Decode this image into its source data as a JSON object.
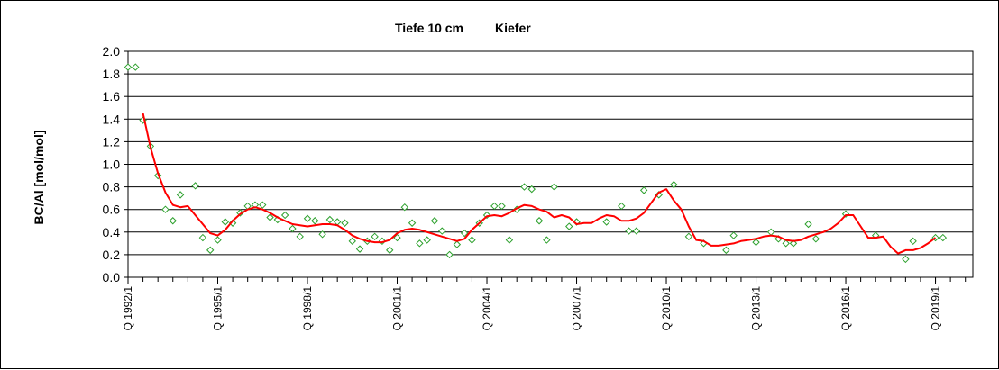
{
  "chart_data": {
    "type": "line",
    "title_left": "Tiefe  10 cm",
    "title_right": "Kiefer",
    "ylabel": "BC/Al [mol/mol]",
    "xlabel": "",
    "ylim": [
      0,
      2.0
    ],
    "yticks": [
      "0.0",
      "0.2",
      "0.4",
      "0.6",
      "0.8",
      "1.0",
      "1.2",
      "1.4",
      "1.6",
      "1.8",
      "2.0"
    ],
    "xlim": [
      1992.0,
      2020.25
    ],
    "xticks": [
      {
        "year": 1992,
        "label": "Q 1992/1"
      },
      {
        "year": 1995,
        "label": "Q 1995/1"
      },
      {
        "year": 1998,
        "label": "Q 1998/1"
      },
      {
        "year": 2001,
        "label": "Q 2001/1"
      },
      {
        "year": 2004,
        "label": "Q 2004/1"
      },
      {
        "year": 2007,
        "label": "Q 2007/1"
      },
      {
        "year": 2010,
        "label": "Q 2010/1"
      },
      {
        "year": 2013,
        "label": "Q 2013/1"
      },
      {
        "year": 2016,
        "label": "Q 2016/1"
      },
      {
        "year": 2019,
        "label": "Q 2019/1"
      }
    ],
    "grid": true,
    "legend": "none",
    "series": [
      {
        "kind": "scatter",
        "color": "#2ca02c",
        "points": [
          [
            1992.0,
            1.86
          ],
          [
            1992.25,
            1.86
          ],
          [
            1992.5,
            1.39
          ],
          [
            1992.75,
            1.16
          ],
          [
            1993.0,
            0.9
          ],
          [
            1993.25,
            0.6
          ],
          [
            1993.5,
            0.5
          ],
          [
            1993.75,
            0.73
          ],
          [
            1994.25,
            0.81
          ],
          [
            1994.5,
            0.35
          ],
          [
            1994.75,
            0.24
          ],
          [
            1995.0,
            0.33
          ],
          [
            1995.25,
            0.49
          ],
          [
            1995.5,
            0.48
          ],
          [
            1995.75,
            0.57
          ],
          [
            1996.0,
            0.63
          ],
          [
            1996.25,
            0.64
          ],
          [
            1996.5,
            0.64
          ],
          [
            1996.75,
            0.53
          ],
          [
            1997.0,
            0.51
          ],
          [
            1997.25,
            0.55
          ],
          [
            1997.5,
            0.43
          ],
          [
            1997.75,
            0.36
          ],
          [
            1998.0,
            0.52
          ],
          [
            1998.25,
            0.5
          ],
          [
            1998.5,
            0.38
          ],
          [
            1998.75,
            0.51
          ],
          [
            1999.0,
            0.49
          ],
          [
            1999.25,
            0.48
          ],
          [
            1999.5,
            0.32
          ],
          [
            1999.75,
            0.25
          ],
          [
            2000.0,
            0.32
          ],
          [
            2000.25,
            0.36
          ],
          [
            2000.5,
            0.32
          ],
          [
            2000.75,
            0.24
          ],
          [
            2001.0,
            0.35
          ],
          [
            2001.25,
            0.62
          ],
          [
            2001.5,
            0.48
          ],
          [
            2001.75,
            0.3
          ],
          [
            2002.0,
            0.33
          ],
          [
            2002.25,
            0.5
          ],
          [
            2002.5,
            0.41
          ],
          [
            2002.75,
            0.2
          ],
          [
            2003.0,
            0.29
          ],
          [
            2003.25,
            0.39
          ],
          [
            2003.5,
            0.33
          ],
          [
            2003.75,
            0.48
          ],
          [
            2004.0,
            0.55
          ],
          [
            2004.25,
            0.63
          ],
          [
            2004.5,
            0.63
          ],
          [
            2004.75,
            0.33
          ],
          [
            2005.0,
            0.6
          ],
          [
            2005.25,
            0.8
          ],
          [
            2005.5,
            0.78
          ],
          [
            2005.75,
            0.5
          ],
          [
            2006.0,
            0.33
          ],
          [
            2006.25,
            0.8
          ],
          [
            2006.75,
            0.45
          ],
          [
            2007.0,
            0.49
          ],
          [
            2008.0,
            0.49
          ],
          [
            2008.5,
            0.63
          ],
          [
            2008.75,
            0.41
          ],
          [
            2009.0,
            0.41
          ],
          [
            2009.25,
            0.77
          ],
          [
            2009.75,
            0.73
          ],
          [
            2010.25,
            0.82
          ],
          [
            2010.75,
            0.36
          ],
          [
            2011.25,
            0.3
          ],
          [
            2012.0,
            0.24
          ],
          [
            2012.25,
            0.37
          ],
          [
            2013.0,
            0.31
          ],
          [
            2013.5,
            0.4
          ],
          [
            2013.75,
            0.34
          ],
          [
            2014.0,
            0.3
          ],
          [
            2014.25,
            0.3
          ],
          [
            2014.75,
            0.47
          ],
          [
            2015.0,
            0.34
          ],
          [
            2016.0,
            0.56
          ],
          [
            2017.0,
            0.37
          ],
          [
            2018.0,
            0.16
          ],
          [
            2018.25,
            0.32
          ],
          [
            2019.0,
            0.35
          ],
          [
            2019.25,
            0.35
          ]
        ]
      },
      {
        "kind": "line",
        "color": "#ff0000",
        "points": [
          [
            1992.5,
            1.45
          ],
          [
            1992.75,
            1.15
          ],
          [
            1993.0,
            0.92
          ],
          [
            1993.25,
            0.75
          ],
          [
            1993.5,
            0.64
          ],
          [
            1993.75,
            0.62
          ],
          [
            1994.0,
            0.63
          ],
          [
            1994.25,
            0.55
          ],
          [
            1994.5,
            0.47
          ],
          [
            1994.75,
            0.39
          ],
          [
            1995.0,
            0.37
          ],
          [
            1995.25,
            0.42
          ],
          [
            1995.5,
            0.5
          ],
          [
            1995.75,
            0.56
          ],
          [
            1996.0,
            0.6
          ],
          [
            1996.25,
            0.62
          ],
          [
            1996.5,
            0.6
          ],
          [
            1996.75,
            0.57
          ],
          [
            1997.0,
            0.53
          ],
          [
            1997.25,
            0.5
          ],
          [
            1997.5,
            0.47
          ],
          [
            1997.75,
            0.46
          ],
          [
            1998.0,
            0.45
          ],
          [
            1998.25,
            0.46
          ],
          [
            1998.5,
            0.47
          ],
          [
            1998.75,
            0.47
          ],
          [
            1999.0,
            0.46
          ],
          [
            1999.25,
            0.42
          ],
          [
            1999.5,
            0.37
          ],
          [
            1999.75,
            0.34
          ],
          [
            2000.0,
            0.32
          ],
          [
            2000.25,
            0.31
          ],
          [
            2000.5,
            0.31
          ],
          [
            2000.75,
            0.33
          ],
          [
            2001.0,
            0.39
          ],
          [
            2001.25,
            0.42
          ],
          [
            2001.5,
            0.43
          ],
          [
            2001.75,
            0.42
          ],
          [
            2002.0,
            0.4
          ],
          [
            2002.25,
            0.38
          ],
          [
            2002.5,
            0.36
          ],
          [
            2002.75,
            0.34
          ],
          [
            2003.0,
            0.32
          ],
          [
            2003.25,
            0.34
          ],
          [
            2003.5,
            0.42
          ],
          [
            2003.75,
            0.48
          ],
          [
            2004.0,
            0.54
          ],
          [
            2004.25,
            0.55
          ],
          [
            2004.5,
            0.54
          ],
          [
            2004.75,
            0.57
          ],
          [
            2005.0,
            0.61
          ],
          [
            2005.25,
            0.64
          ],
          [
            2005.5,
            0.63
          ],
          [
            2005.75,
            0.6
          ],
          [
            2006.0,
            0.58
          ],
          [
            2006.25,
            0.53
          ],
          [
            2006.5,
            0.55
          ],
          [
            2006.75,
            0.53
          ],
          [
            2007.0,
            0.47
          ],
          [
            2007.25,
            0.48
          ],
          [
            2007.5,
            0.48
          ],
          [
            2007.75,
            0.52
          ],
          [
            2008.0,
            0.55
          ],
          [
            2008.25,
            0.54
          ],
          [
            2008.5,
            0.5
          ],
          [
            2008.75,
            0.5
          ],
          [
            2009.0,
            0.52
          ],
          [
            2009.25,
            0.57
          ],
          [
            2009.5,
            0.66
          ],
          [
            2009.75,
            0.75
          ],
          [
            2010.0,
            0.78
          ],
          [
            2010.25,
            0.68
          ],
          [
            2010.5,
            0.6
          ],
          [
            2010.75,
            0.45
          ],
          [
            2011.0,
            0.33
          ],
          [
            2011.25,
            0.32
          ],
          [
            2011.5,
            0.28
          ],
          [
            2011.75,
            0.28
          ],
          [
            2012.0,
            0.29
          ],
          [
            2012.25,
            0.3
          ],
          [
            2012.5,
            0.32
          ],
          [
            2012.75,
            0.33
          ],
          [
            2013.0,
            0.34
          ],
          [
            2013.25,
            0.36
          ],
          [
            2013.5,
            0.37
          ],
          [
            2013.75,
            0.36
          ],
          [
            2014.0,
            0.33
          ],
          [
            2014.25,
            0.32
          ],
          [
            2014.5,
            0.33
          ],
          [
            2014.75,
            0.36
          ],
          [
            2015.0,
            0.38
          ],
          [
            2015.25,
            0.4
          ],
          [
            2015.5,
            0.43
          ],
          [
            2015.75,
            0.48
          ],
          [
            2016.0,
            0.55
          ],
          [
            2016.25,
            0.55
          ],
          [
            2016.5,
            0.45
          ],
          [
            2016.75,
            0.35
          ],
          [
            2017.0,
            0.35
          ],
          [
            2017.25,
            0.36
          ],
          [
            2017.5,
            0.27
          ],
          [
            2017.75,
            0.21
          ],
          [
            2018.0,
            0.24
          ],
          [
            2018.25,
            0.24
          ],
          [
            2018.5,
            0.26
          ],
          [
            2018.75,
            0.3
          ],
          [
            2019.0,
            0.35
          ]
        ]
      }
    ]
  }
}
